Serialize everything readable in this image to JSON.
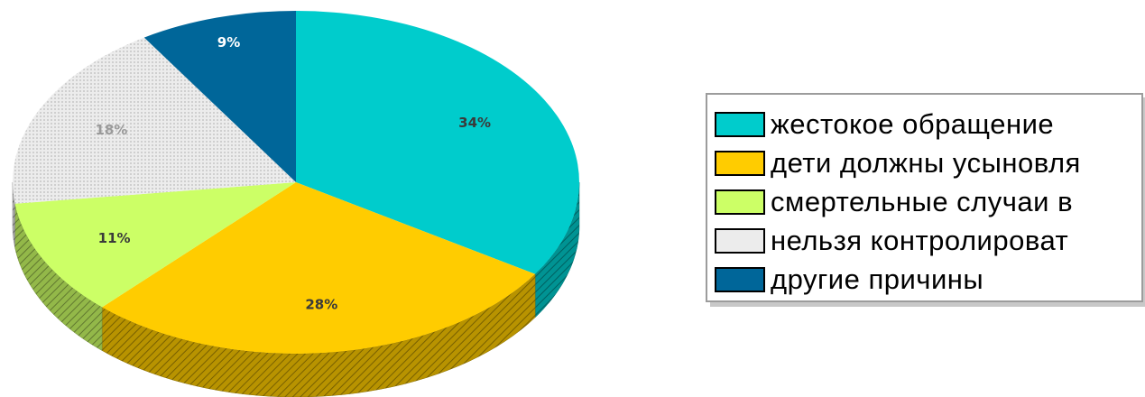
{
  "chart_data": {
    "type": "pie",
    "title": "",
    "categories": [
      "жестокое обращение",
      "дети должны усыновля",
      "смертельные случаи в",
      "нельзя контролироват",
      "другие причины"
    ],
    "values": [
      34,
      28,
      11,
      18,
      9
    ],
    "data_labels": [
      "34%",
      "28%",
      "11%",
      "18%",
      "9%"
    ],
    "colors": [
      "#00cccc",
      "#ffcc00",
      "#ccff66",
      "#ececec",
      "#006699"
    ],
    "label_colors": [
      "#3a3a3a",
      "#3a3a3a",
      "#3a3a3a",
      "#9a9a9a",
      "#ffffff"
    ],
    "legend_position": "right",
    "style": "3d-tilted"
  }
}
